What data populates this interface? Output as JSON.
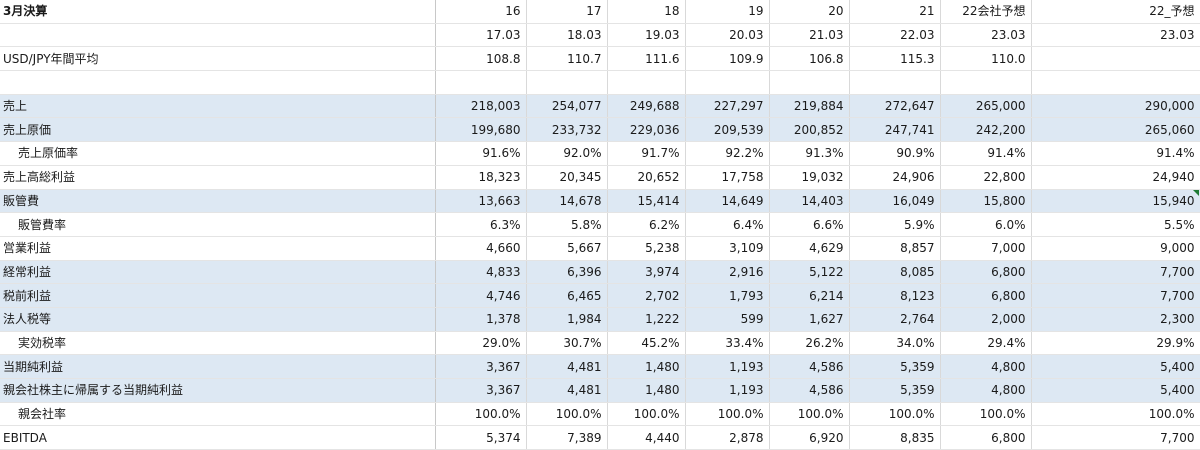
{
  "sheet": {
    "header": {
      "label": "3月決算",
      "years": [
        "16",
        "17",
        "18",
        "19",
        "20",
        "21",
        "22会社予想",
        "22_予想"
      ]
    },
    "period_row": {
      "label": "",
      "values": [
        "17.03",
        "18.03",
        "19.03",
        "20.03",
        "21.03",
        "22.03",
        "23.03",
        "23.03"
      ]
    },
    "rows": [
      {
        "label": "USD/JPY年間平均",
        "values": [
          "108.8",
          "110.7",
          "111.6",
          "109.9",
          "106.8",
          "115.3",
          "110.0",
          ""
        ],
        "shaded": false,
        "indent": false
      },
      {
        "label": "",
        "values": [
          "",
          "",
          "",
          "",
          "",
          "",
          "",
          ""
        ],
        "shaded": false,
        "indent": false
      },
      {
        "label": "売上",
        "values": [
          "218,003",
          "254,077",
          "249,688",
          "227,297",
          "219,884",
          "272,647",
          "265,000",
          "290,000"
        ],
        "shaded": true,
        "indent": false
      },
      {
        "label": "売上原価",
        "values": [
          "199,680",
          "233,732",
          "229,036",
          "209,539",
          "200,852",
          "247,741",
          "242,200",
          "265,060"
        ],
        "shaded": true,
        "indent": false
      },
      {
        "label": "売上原価率",
        "values": [
          "91.6%",
          "92.0%",
          "91.7%",
          "92.2%",
          "91.3%",
          "90.9%",
          "91.4%",
          "91.4%"
        ],
        "shaded": false,
        "indent": true
      },
      {
        "label": "売上高総利益",
        "values": [
          "18,323",
          "20,345",
          "20,652",
          "17,758",
          "19,032",
          "24,906",
          "22,800",
          "24,940"
        ],
        "shaded": false,
        "indent": false
      },
      {
        "label": "販管費",
        "values": [
          "13,663",
          "14,678",
          "15,414",
          "14,649",
          "14,403",
          "16,049",
          "15,800",
          "15,940"
        ],
        "shaded": true,
        "indent": false
      },
      {
        "label": "販管費率",
        "values": [
          "6.3%",
          "5.8%",
          "6.2%",
          "6.4%",
          "6.6%",
          "5.9%",
          "6.0%",
          "5.5%"
        ],
        "shaded": false,
        "indent": true
      },
      {
        "label": "営業利益",
        "values": [
          "4,660",
          "5,667",
          "5,238",
          "3,109",
          "4,629",
          "8,857",
          "7,000",
          "9,000"
        ],
        "shaded": false,
        "indent": false
      },
      {
        "label": "経常利益",
        "values": [
          "4,833",
          "6,396",
          "3,974",
          "2,916",
          "5,122",
          "8,085",
          "6,800",
          "7,700"
        ],
        "shaded": true,
        "indent": false
      },
      {
        "label": "税前利益",
        "values": [
          "4,746",
          "6,465",
          "2,702",
          "1,793",
          "6,214",
          "8,123",
          "6,800",
          "7,700"
        ],
        "shaded": true,
        "indent": false
      },
      {
        "label": "法人税等",
        "values": [
          "1,378",
          "1,984",
          "1,222",
          "599",
          "1,627",
          "2,764",
          "2,000",
          "2,300"
        ],
        "shaded": true,
        "indent": false
      },
      {
        "label": "実効税率",
        "values": [
          "29.0%",
          "30.7%",
          "45.2%",
          "33.4%",
          "26.2%",
          "34.0%",
          "29.4%",
          "29.9%"
        ],
        "shaded": false,
        "indent": true
      },
      {
        "label": "当期純利益",
        "values": [
          "3,367",
          "4,481",
          "1,480",
          "1,193",
          "4,586",
          "5,359",
          "4,800",
          "5,400"
        ],
        "shaded": true,
        "indent": false
      },
      {
        "label": "親会社株主に帰属する当期純利益",
        "values": [
          "3,367",
          "4,481",
          "1,480",
          "1,193",
          "4,586",
          "5,359",
          "4,800",
          "5,400"
        ],
        "shaded": true,
        "indent": false
      },
      {
        "label": "親会社率",
        "values": [
          "100.0%",
          "100.0%",
          "100.0%",
          "100.0%",
          "100.0%",
          "100.0%",
          "100.0%",
          "100.0%"
        ],
        "shaded": false,
        "indent": true
      },
      {
        "label": "EBITDA",
        "values": [
          "5,374",
          "7,389",
          "4,440",
          "2,878",
          "6,920",
          "8,835",
          "6,800",
          "7,700"
        ],
        "shaded": false,
        "indent": false
      }
    ]
  }
}
